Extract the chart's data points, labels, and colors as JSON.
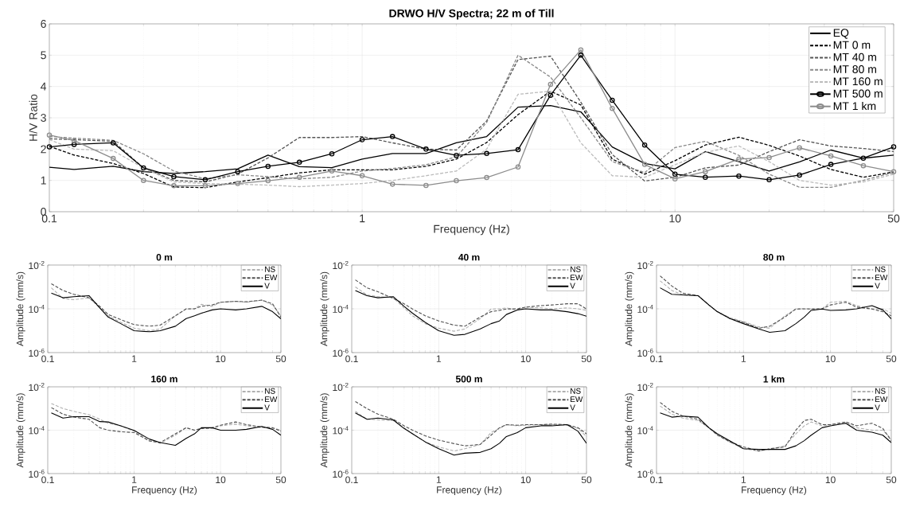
{
  "chart_data": [
    {
      "type": "line",
      "title": "DRWO H/V Spectra; 22 m of Till",
      "xlabel": "Frequency (Hz)",
      "ylabel": "H/V Ratio",
      "log": "x",
      "grid": true,
      "legend": "top right",
      "xlim": [
        0.1,
        50
      ],
      "xticks": [
        0.1,
        1,
        10,
        50
      ],
      "ylim": [
        0,
        6
      ],
      "yticks": [
        0,
        1,
        2,
        3,
        4,
        5,
        6
      ],
      "x": [
        0.1,
        0.12,
        0.16,
        0.2,
        0.25,
        0.315,
        0.4,
        0.5,
        0.63,
        0.8,
        1,
        1.25,
        1.6,
        2,
        2.5,
        3.15,
        4,
        5,
        6.3,
        8,
        10,
        12.5,
        16,
        20,
        25,
        31.5,
        40,
        50
      ],
      "series": [
        {
          "name": "EQ",
          "color": "#000000",
          "line_style": "solid",
          "values": [
            1.42,
            1.35,
            1.45,
            1.28,
            1.22,
            1.28,
            1.37,
            1.81,
            1.44,
            1.41,
            1.68,
            1.86,
            1.86,
            2.2,
            2.4,
            3.34,
            3.39,
            3.19,
            2.07,
            1.54,
            1.37,
            1.92,
            1.6,
            1.3,
            1.59,
            1.97,
            1.71,
            1.81
          ]
        },
        {
          "name": "MT 0 m",
          "color": "#000000",
          "line_style": "dashed",
          "values": [
            2.09,
            1.81,
            1.54,
            1.22,
            0.79,
            0.77,
            0.95,
            1.09,
            1.24,
            1.34,
            1.34,
            1.34,
            1.45,
            1.68,
            2.21,
            3.1,
            3.85,
            3.41,
            1.68,
            1.2,
            1.63,
            2.13,
            2.38,
            2.12,
            1.78,
            1.35,
            1.1,
            1.27
          ]
        },
        {
          "name": "MT 40 m",
          "color": "#555555",
          "line_style": "dashed",
          "values": [
            2.33,
            2.3,
            2.25,
            1.4,
            1.0,
            0.95,
            1.2,
            1.72,
            2.37,
            2.37,
            2.4,
            2.2,
            2.0,
            1.97,
            2.9,
            4.86,
            4.97,
            3.5,
            1.83,
            0.98,
            1.1,
            1.4,
            1.49,
            1.92,
            2.3,
            2.1,
            2.02,
            1.92
          ]
        },
        {
          "name": "MT 80 m",
          "color": "#888888",
          "line_style": "dashed",
          "values": [
            2.4,
            2.35,
            2.28,
            1.85,
            1.3,
            1.05,
            1.18,
            1.12,
            1.05,
            1.1,
            1.3,
            1.38,
            1.5,
            1.75,
            2.85,
            5.0,
            4.3,
            3.0,
            1.6,
            1.25,
            2.05,
            2.25,
            1.8,
            1.2,
            0.78,
            0.78,
            1.0,
            1.25
          ]
        },
        {
          "name": "MT 160 m",
          "color": "#bbbbbb",
          "line_style": "dashed",
          "values": [
            2.3,
            2.0,
            1.95,
            1.4,
            0.95,
            0.9,
            0.88,
            0.85,
            0.8,
            0.85,
            0.9,
            1.0,
            1.15,
            1.3,
            2.0,
            3.75,
            3.85,
            2.2,
            1.15,
            1.1,
            1.5,
            1.9,
            2.1,
            1.6,
            1.0,
            0.85,
            0.95,
            1.2
          ]
        },
        {
          "name": "MT 500 m",
          "color": "#000000",
          "line_style": "solid",
          "marker": "circle",
          "values": [
            2.07,
            2.15,
            2.2,
            1.4,
            1.12,
            1.02,
            1.28,
            1.45,
            1.58,
            1.85,
            2.3,
            2.4,
            2.0,
            1.8,
            1.86,
            1.98,
            3.72,
            5.0,
            3.56,
            2.13,
            1.2,
            1.1,
            1.14,
            1.02,
            1.17,
            1.51,
            1.71,
            2.07
          ]
        },
        {
          "name": "MT 1 km",
          "color": "#8c8c8c",
          "line_style": "solid",
          "marker": "circle",
          "values": [
            2.45,
            2.27,
            1.7,
            1.0,
            0.83,
            0.83,
            0.9,
            0.99,
            1.1,
            1.3,
            1.15,
            0.88,
            0.84,
            0.99,
            1.09,
            1.43,
            4.07,
            5.17,
            3.3,
            1.51,
            1.05,
            1.28,
            1.68,
            1.73,
            2.04,
            1.78,
            1.47,
            1.28
          ]
        }
      ]
    },
    {
      "type": "line",
      "title": "0 m",
      "ylabel": "Amplitude (mm/s)",
      "log": "xy",
      "grid": true,
      "legend": "top right",
      "xlim": [
        0.1,
        50
      ],
      "xticks": [
        0.1,
        1,
        10,
        50
      ],
      "ylim": [
        1e-06,
        0.01
      ],
      "yticks": [
        {
          "value": 1e-06,
          "label": "10$^{-6}$"
        },
        {
          "value": 0.0001,
          "label": "10$^{-4}$"
        },
        {
          "value": 0.01,
          "label": "10$^{-2}$"
        }
      ],
      "x": [
        0.11,
        0.15,
        0.2,
        0.3,
        0.4,
        0.5,
        0.7,
        1,
        1.5,
        2,
        3,
        4,
        5,
        6,
        8,
        10,
        15,
        20,
        30,
        40,
        50
      ],
      "series": [
        {
          "name": "NS",
          "color": "#b0b0b0",
          "line_style": "dashed",
          "values": [
            0.00091,
            0.0003,
            0.00026,
            0.00032,
            0.00011,
            4.8e-05,
            2.4e-05,
            1.3e-05,
            1e-05,
            1.2e-05,
            4.8e-05,
            9.8e-05,
            0.0001,
            0.00016,
            0.00013,
            0.0002,
            0.00022,
            0.0002,
            0.00025,
            0.00015,
            4.8e-05
          ]
        },
        {
          "name": "EW",
          "color": "#505050",
          "line_style": "dashed",
          "values": [
            0.0014,
            0.00069,
            0.00046,
            0.00032,
            0.00013,
            5.5e-05,
            3.2e-05,
            1.9e-05,
            1.6e-05,
            1.8e-05,
            4.8e-05,
            0.0001,
            0.0001,
            0.00013,
            0.00015,
            0.0002,
            0.00022,
            0.00021,
            0.00025,
            0.00017,
            4.2e-05
          ]
        },
        {
          "name": "V",
          "color": "#000000",
          "line_style": "solid",
          "values": [
            0.00052,
            0.00032,
            0.00036,
            0.0004,
            0.00011,
            4.2e-05,
            2.1e-05,
            1e-05,
            8.9e-06,
            1e-05,
            1.6e-05,
            3.6e-05,
            4.8e-05,
            6.3e-05,
            8.9e-05,
            0.0001,
            8.9e-05,
            0.0001,
            0.00013,
            7.4e-05,
            3.5e-05
          ]
        }
      ]
    },
    {
      "type": "line",
      "title": "40 m",
      "ylabel": "Amplitude (mm/s)",
      "log": "xy",
      "grid": true,
      "legend": "top right",
      "xlim": [
        0.1,
        50
      ],
      "xticks": [
        0.1,
        1,
        10,
        50
      ],
      "ylim": [
        1e-06,
        0.01
      ],
      "yticks": [
        {
          "value": 1e-06,
          "label": "10$^{-6}$"
        },
        {
          "value": 0.0001,
          "label": "10$^{-4}$"
        },
        {
          "value": 0.01,
          "label": "10$^{-2}$"
        }
      ],
      "x": [
        0.11,
        0.15,
        0.2,
        0.3,
        0.4,
        0.5,
        0.7,
        1,
        1.5,
        2,
        3,
        4,
        5,
        6,
        8,
        10,
        15,
        20,
        30,
        40,
        50
      ],
      "series": [
        {
          "name": "NS",
          "color": "#b0b0b0",
          "line_style": "dashed",
          "values": [
            0.001,
            0.00043,
            0.00036,
            0.00032,
            0.00011,
            4.8e-05,
            2.1e-05,
            1.3e-05,
            9.5e-06,
            1.2e-05,
            3.6e-05,
            9.8e-05,
            0.0001,
            0.00011,
            8.9e-05,
            0.00012,
            0.00011,
            0.0001,
            0.00011,
            0.0001,
            8.5e-05
          ]
        },
        {
          "name": "EW",
          "color": "#505050",
          "line_style": "dashed",
          "values": [
            0.0021,
            0.00091,
            0.0006,
            0.0003,
            0.00017,
            9.8e-05,
            4.8e-05,
            2.8e-05,
            1.8e-05,
            1.6e-05,
            4.2e-05,
            7.4e-05,
            8.5e-05,
            9.8e-05,
            0.0001,
            0.00012,
            0.00014,
            0.00015,
            0.00017,
            0.00017,
            9.8e-05
          ]
        },
        {
          "name": "V",
          "color": "#000000",
          "line_style": "solid",
          "values": [
            0.00069,
            0.0004,
            0.00032,
            0.00036,
            0.00013,
            6.3e-05,
            2.4e-05,
            1e-05,
            6.2e-06,
            6.8e-06,
            1.2e-05,
            2.1e-05,
            2.8e-05,
            5.5e-05,
            8.9e-05,
            0.0001,
            8.9e-05,
            8.9e-05,
            7.4e-05,
            6e-05,
            4.6e-05
          ]
        }
      ]
    },
    {
      "type": "line",
      "title": "80 m",
      "ylabel": "Amplitude (mm/s)",
      "log": "xy",
      "grid": true,
      "legend": "top right",
      "xlim": [
        0.1,
        50
      ],
      "xticks": [
        0.1,
        1,
        10,
        50
      ],
      "ylim": [
        1e-06,
        0.01
      ],
      "yticks": [
        {
          "value": 1e-06,
          "label": "10$^{-6}$"
        },
        {
          "value": 0.0001,
          "label": "10$^{-4}$"
        },
        {
          "value": 0.01,
          "label": "10$^{-2}$"
        }
      ],
      "x": [
        0.11,
        0.15,
        0.2,
        0.3,
        0.4,
        0.5,
        0.7,
        1,
        1.5,
        2,
        3,
        4,
        5,
        6,
        8,
        10,
        15,
        20,
        30,
        40,
        50
      ],
      "series": [
        {
          "name": "NS",
          "color": "#b0b0b0",
          "line_style": "dashed",
          "values": [
            0.0019,
            0.00069,
            0.00043,
            0.0004,
            0.00015,
            7.4e-05,
            3.9e-05,
            2.6e-05,
            1.5e-05,
            1.3e-05,
            4.8e-05,
            0.0001,
            9.8e-05,
            0.0001,
            0.0001,
            0.0002,
            0.00022,
            0.00014,
            0.0001,
            0.0001,
            6.3e-05
          ]
        },
        {
          "name": "EW",
          "color": "#505050",
          "line_style": "dashed",
          "values": [
            0.0032,
            0.0011,
            0.00052,
            0.0004,
            0.00015,
            7.4e-05,
            3.6e-05,
            2.4e-05,
            1.3e-05,
            1.6e-05,
            4.2e-05,
            9.8e-05,
            0.0001,
            9.8e-05,
            0.0001,
            0.00015,
            0.0002,
            0.00012,
            9.8e-05,
            7.4e-05,
            4.8e-05
          ]
        },
        {
          "name": "V",
          "color": "#000000",
          "line_style": "solid",
          "values": [
            0.00091,
            0.00046,
            0.00043,
            0.0004,
            0.00015,
            7.4e-05,
            3.6e-05,
            2.1e-05,
            1.2e-05,
            8.5e-06,
            1e-05,
            2.1e-05,
            4.2e-05,
            8.5e-05,
            9.8e-05,
            8.5e-05,
            8.9e-05,
            0.0001,
            0.00014,
            8.9e-05,
            3.5e-05
          ]
        }
      ]
    },
    {
      "type": "line",
      "title": "160 m",
      "xlabel": "Frequency (Hz)",
      "ylabel": "Amplitude (mm/s)",
      "log": "xy",
      "grid": true,
      "legend": "top right",
      "xlim": [
        0.1,
        50
      ],
      "xticks": [
        0.1,
        1,
        10,
        50
      ],
      "ylim": [
        1e-06,
        0.01
      ],
      "yticks": [
        {
          "value": 1e-06,
          "label": "10$^{-6}$"
        },
        {
          "value": 0.0001,
          "label": "10$^{-4}$"
        },
        {
          "value": 0.01,
          "label": "10$^{-2}$"
        }
      ],
      "x": [
        0.11,
        0.15,
        0.2,
        0.3,
        0.4,
        0.5,
        0.7,
        1,
        1.5,
        2,
        3,
        4,
        5,
        6,
        8,
        10,
        15,
        20,
        30,
        40,
        50
      ],
      "series": [
        {
          "name": "NS",
          "color": "#b0b0b0",
          "line_style": "dashed",
          "values": [
            0.0017,
            0.001,
            0.00074,
            0.00052,
            0.00032,
            0.00021,
            0.00016,
            8.9e-05,
            3.3e-05,
            2.5e-05,
            5.9e-05,
            0.00013,
            0.0001,
            0.00012,
            0.00012,
            0.00016,
            0.00019,
            0.00016,
            0.00013,
            0.00013,
            9.8e-05
          ]
        },
        {
          "name": "EW",
          "color": "#505050",
          "line_style": "dashed",
          "values": [
            0.0011,
            0.00055,
            0.0004,
            0.00032,
            0.00013,
            0.0001,
            8.5e-05,
            7.8e-05,
            3.2e-05,
            2.7e-05,
            6.8e-05,
            0.00013,
            0.0001,
            0.00012,
            0.00013,
            0.00017,
            0.00024,
            0.00018,
            0.00014,
            0.00013,
            8.9e-05
          ]
        },
        {
          "name": "V",
          "color": "#000000",
          "line_style": "solid",
          "values": [
            0.00063,
            0.00036,
            0.00042,
            0.00042,
            0.00025,
            0.00024,
            0.00016,
            9.8e-05,
            3.9e-05,
            2.7e-05,
            2e-05,
            4.2e-05,
            6.8e-05,
            0.00013,
            0.00013,
            0.0001,
            0.0001,
            0.00011,
            0.00015,
            0.00011,
            5.9e-05
          ]
        }
      ]
    },
    {
      "type": "line",
      "title": "500 m",
      "xlabel": "Frequency (Hz)",
      "ylabel": "Amplitude (mm/s)",
      "log": "xy",
      "grid": true,
      "legend": "top right",
      "xlim": [
        0.1,
        50
      ],
      "xticks": [
        0.1,
        1,
        10,
        50
      ],
      "ylim": [
        1e-06,
        0.01
      ],
      "yticks": [
        {
          "value": 1e-06,
          "label": "10$^{-6}$"
        },
        {
          "value": 0.0001,
          "label": "10$^{-4}$"
        },
        {
          "value": 0.01,
          "label": "10$^{-2}$"
        }
      ],
      "x": [
        0.11,
        0.15,
        0.2,
        0.3,
        0.4,
        0.5,
        0.7,
        1,
        1.5,
        2,
        3,
        4,
        5,
        6,
        8,
        10,
        15,
        20,
        30,
        40,
        50
      ],
      "series": [
        {
          "name": "NS",
          "color": "#b0b0b0",
          "line_style": "dashed",
          "values": [
            0.00074,
            0.00032,
            0.0003,
            0.00028,
            0.00013,
            6.8e-05,
            2.9e-05,
            1.7e-05,
            1.1e-05,
            1.4e-05,
            2.2e-05,
            7.8e-05,
            0.00012,
            0.00018,
            0.00016,
            0.00017,
            0.00018,
            0.00018,
            0.00017,
            0.00012,
            5.1e-05
          ]
        },
        {
          "name": "EW",
          "color": "#505050",
          "line_style": "dashed",
          "values": [
            0.0021,
            0.00098,
            0.00055,
            0.00032,
            0.00016,
            0.0001,
            5.5e-05,
            3.5e-05,
            2.4e-05,
            1.9e-05,
            2.2e-05,
            5.9e-05,
            0.00013,
            0.00018,
            0.00017,
            0.00018,
            0.00018,
            0.00019,
            0.00018,
            0.00013,
            6.8e-05
          ]
        },
        {
          "name": "V",
          "color": "#000000",
          "line_style": "solid",
          "values": [
            0.00063,
            0.00032,
            0.00036,
            0.0003,
            0.00012,
            6.8e-05,
            2.9e-05,
            1.4e-05,
            7.1e-06,
            8.7e-06,
            9.5e-06,
            1.4e-05,
            2.5e-05,
            5.1e-05,
            7.8e-05,
            0.00013,
            0.00016,
            0.00016,
            0.00018,
            8.9e-05,
            2.5e-05
          ]
        }
      ]
    },
    {
      "type": "line",
      "title": "1 km",
      "xlabel": "Frequency (Hz)",
      "ylabel": "Amplitude (mm/s)",
      "log": "xy",
      "grid": true,
      "legend": "top right",
      "xlim": [
        0.1,
        50
      ],
      "xticks": [
        0.1,
        1,
        10,
        50
      ],
      "ylim": [
        1e-06,
        0.01
      ],
      "yticks": [
        {
          "value": 1e-06,
          "label": "10$^{-6}$"
        },
        {
          "value": 0.0001,
          "label": "10$^{-4}$"
        },
        {
          "value": 0.01,
          "label": "10$^{-2}$"
        }
      ],
      "x": [
        0.11,
        0.15,
        0.2,
        0.3,
        0.4,
        0.5,
        0.7,
        1,
        1.5,
        2,
        3,
        4,
        5,
        6,
        8,
        10,
        15,
        20,
        30,
        40,
        50
      ],
      "series": [
        {
          "name": "NS",
          "color": "#b0b0b0",
          "line_style": "dashed",
          "values": [
            0.0013,
            0.00055,
            0.00036,
            0.00028,
            0.00013,
            6.3e-05,
            2.8e-05,
            1.4e-05,
            1.1e-05,
            1.3e-05,
            1.9e-05,
            6.8e-05,
            0.00016,
            0.00024,
            0.00016,
            0.00018,
            0.00021,
            0.00013,
            0.0001,
            0.0001,
            3.9e-05
          ]
        },
        {
          "name": "EW",
          "color": "#505050",
          "line_style": "dashed",
          "values": [
            0.0019,
            0.00074,
            0.00045,
            0.00032,
            0.00013,
            5.9e-05,
            2.9e-05,
            1.7e-05,
            1.1e-05,
            1.4e-05,
            1.7e-05,
            0.0001,
            0.00028,
            0.00032,
            0.00018,
            0.00018,
            0.00024,
            0.00016,
            0.00021,
            0.00012,
            3.3e-05
          ]
        },
        {
          "name": "V",
          "color": "#000000",
          "line_style": "solid",
          "values": [
            0.00063,
            0.0004,
            0.00045,
            0.0004,
            0.00013,
            6.8e-05,
            3.2e-05,
            1.4e-05,
            1.3e-05,
            1.3e-05,
            1.3e-05,
            1.9e-05,
            3.3e-05,
            5.9e-05,
            0.00013,
            0.00016,
            0.00021,
            0.0001,
            8.1e-05,
            5.9e-05,
            2.7e-05
          ]
        }
      ]
    }
  ]
}
